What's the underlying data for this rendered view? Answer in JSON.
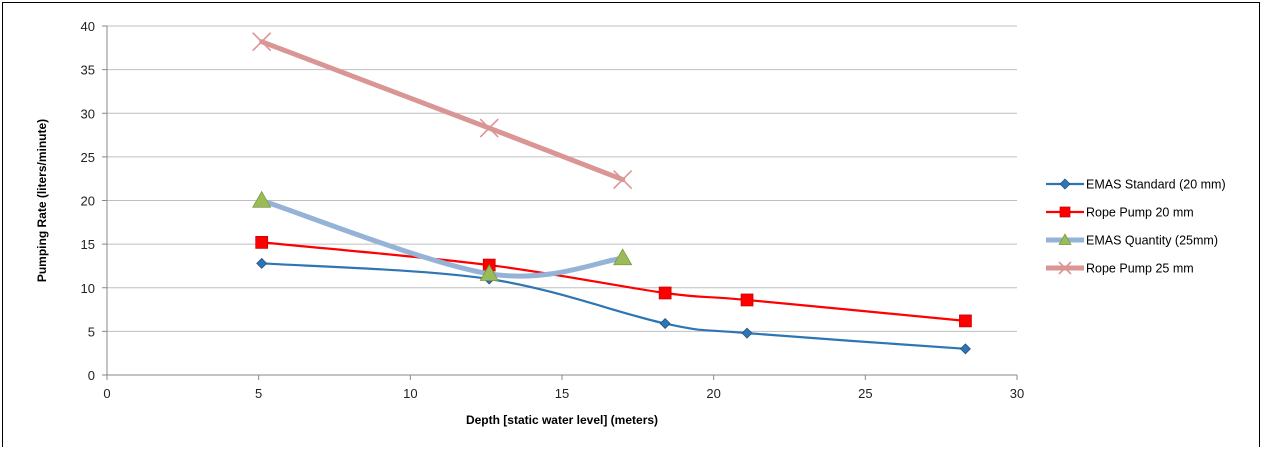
{
  "chart_data": {
    "type": "line",
    "title": "",
    "xlabel": "Depth [static water level] (meters)",
    "ylabel": "Pumping Rate (liters/minute)",
    "xlim": [
      0,
      30
    ],
    "ylim": [
      0,
      40
    ],
    "x_ticks": [
      "0",
      "5",
      "10",
      "15",
      "20",
      "25",
      "30"
    ],
    "y_ticks": [
      "0",
      "5",
      "10",
      "15",
      "20",
      "25",
      "30",
      "35",
      "40"
    ],
    "grid": "horizontal",
    "legend_position": "right",
    "series": [
      {
        "name": "EMAS Standard (20 mm)",
        "color": "#2E75B6",
        "marker": "diamond",
        "smooth": true,
        "x": [
          5.1,
          12.6,
          18.4,
          21.1,
          28.3
        ],
        "y": [
          12.8,
          11.0,
          5.9,
          4.8,
          3.0
        ]
      },
      {
        "name": "Rope Pump 20 mm",
        "color": "#FF0000",
        "marker": "square",
        "smooth": true,
        "x": [
          5.1,
          12.6,
          18.4,
          21.1,
          28.3
        ],
        "y": [
          15.2,
          12.6,
          9.4,
          8.6,
          6.2
        ]
      },
      {
        "name": "EMAS Quantity (25mm)",
        "color": "#95B3D7",
        "marker_color": "#9BBB59",
        "marker": "triangle",
        "smooth": true,
        "x": [
          5.1,
          12.6,
          17.0
        ],
        "y": [
          20.0,
          11.6,
          13.4
        ]
      },
      {
        "name": "Rope Pump 25 mm",
        "color": "#D99694",
        "marker": "x",
        "smooth": false,
        "x": [
          5.1,
          12.6,
          17.0
        ],
        "y": [
          38.2,
          28.3,
          22.4
        ]
      }
    ]
  }
}
